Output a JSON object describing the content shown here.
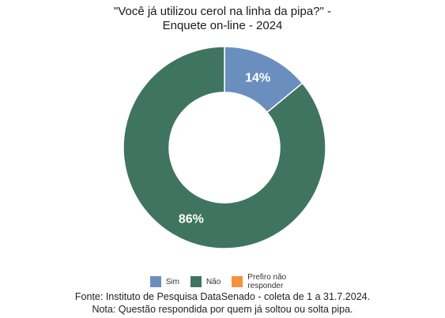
{
  "chart_data": {
    "type": "pie",
    "title_lines": [
      "\"Você já utilizou cerol na linha da pipa?\" -",
      "Enquete on-line - 2024"
    ],
    "categories": [
      "Sim",
      "Não",
      "Prefiro não responder"
    ],
    "values": [
      14,
      86,
      0
    ],
    "data_labels": [
      "14%",
      "86%",
      ""
    ],
    "colors": [
      "#6a8fbf",
      "#3f7461",
      "#f5923e"
    ],
    "legend_position": "bottom",
    "donut": true
  },
  "footer": {
    "source": "Fonte: Instituto de Pesquisa DataSenado - coleta de 1 a 31.7.2024.",
    "note": "Nota: Questão respondida por quem já soltou ou solta pipa."
  }
}
